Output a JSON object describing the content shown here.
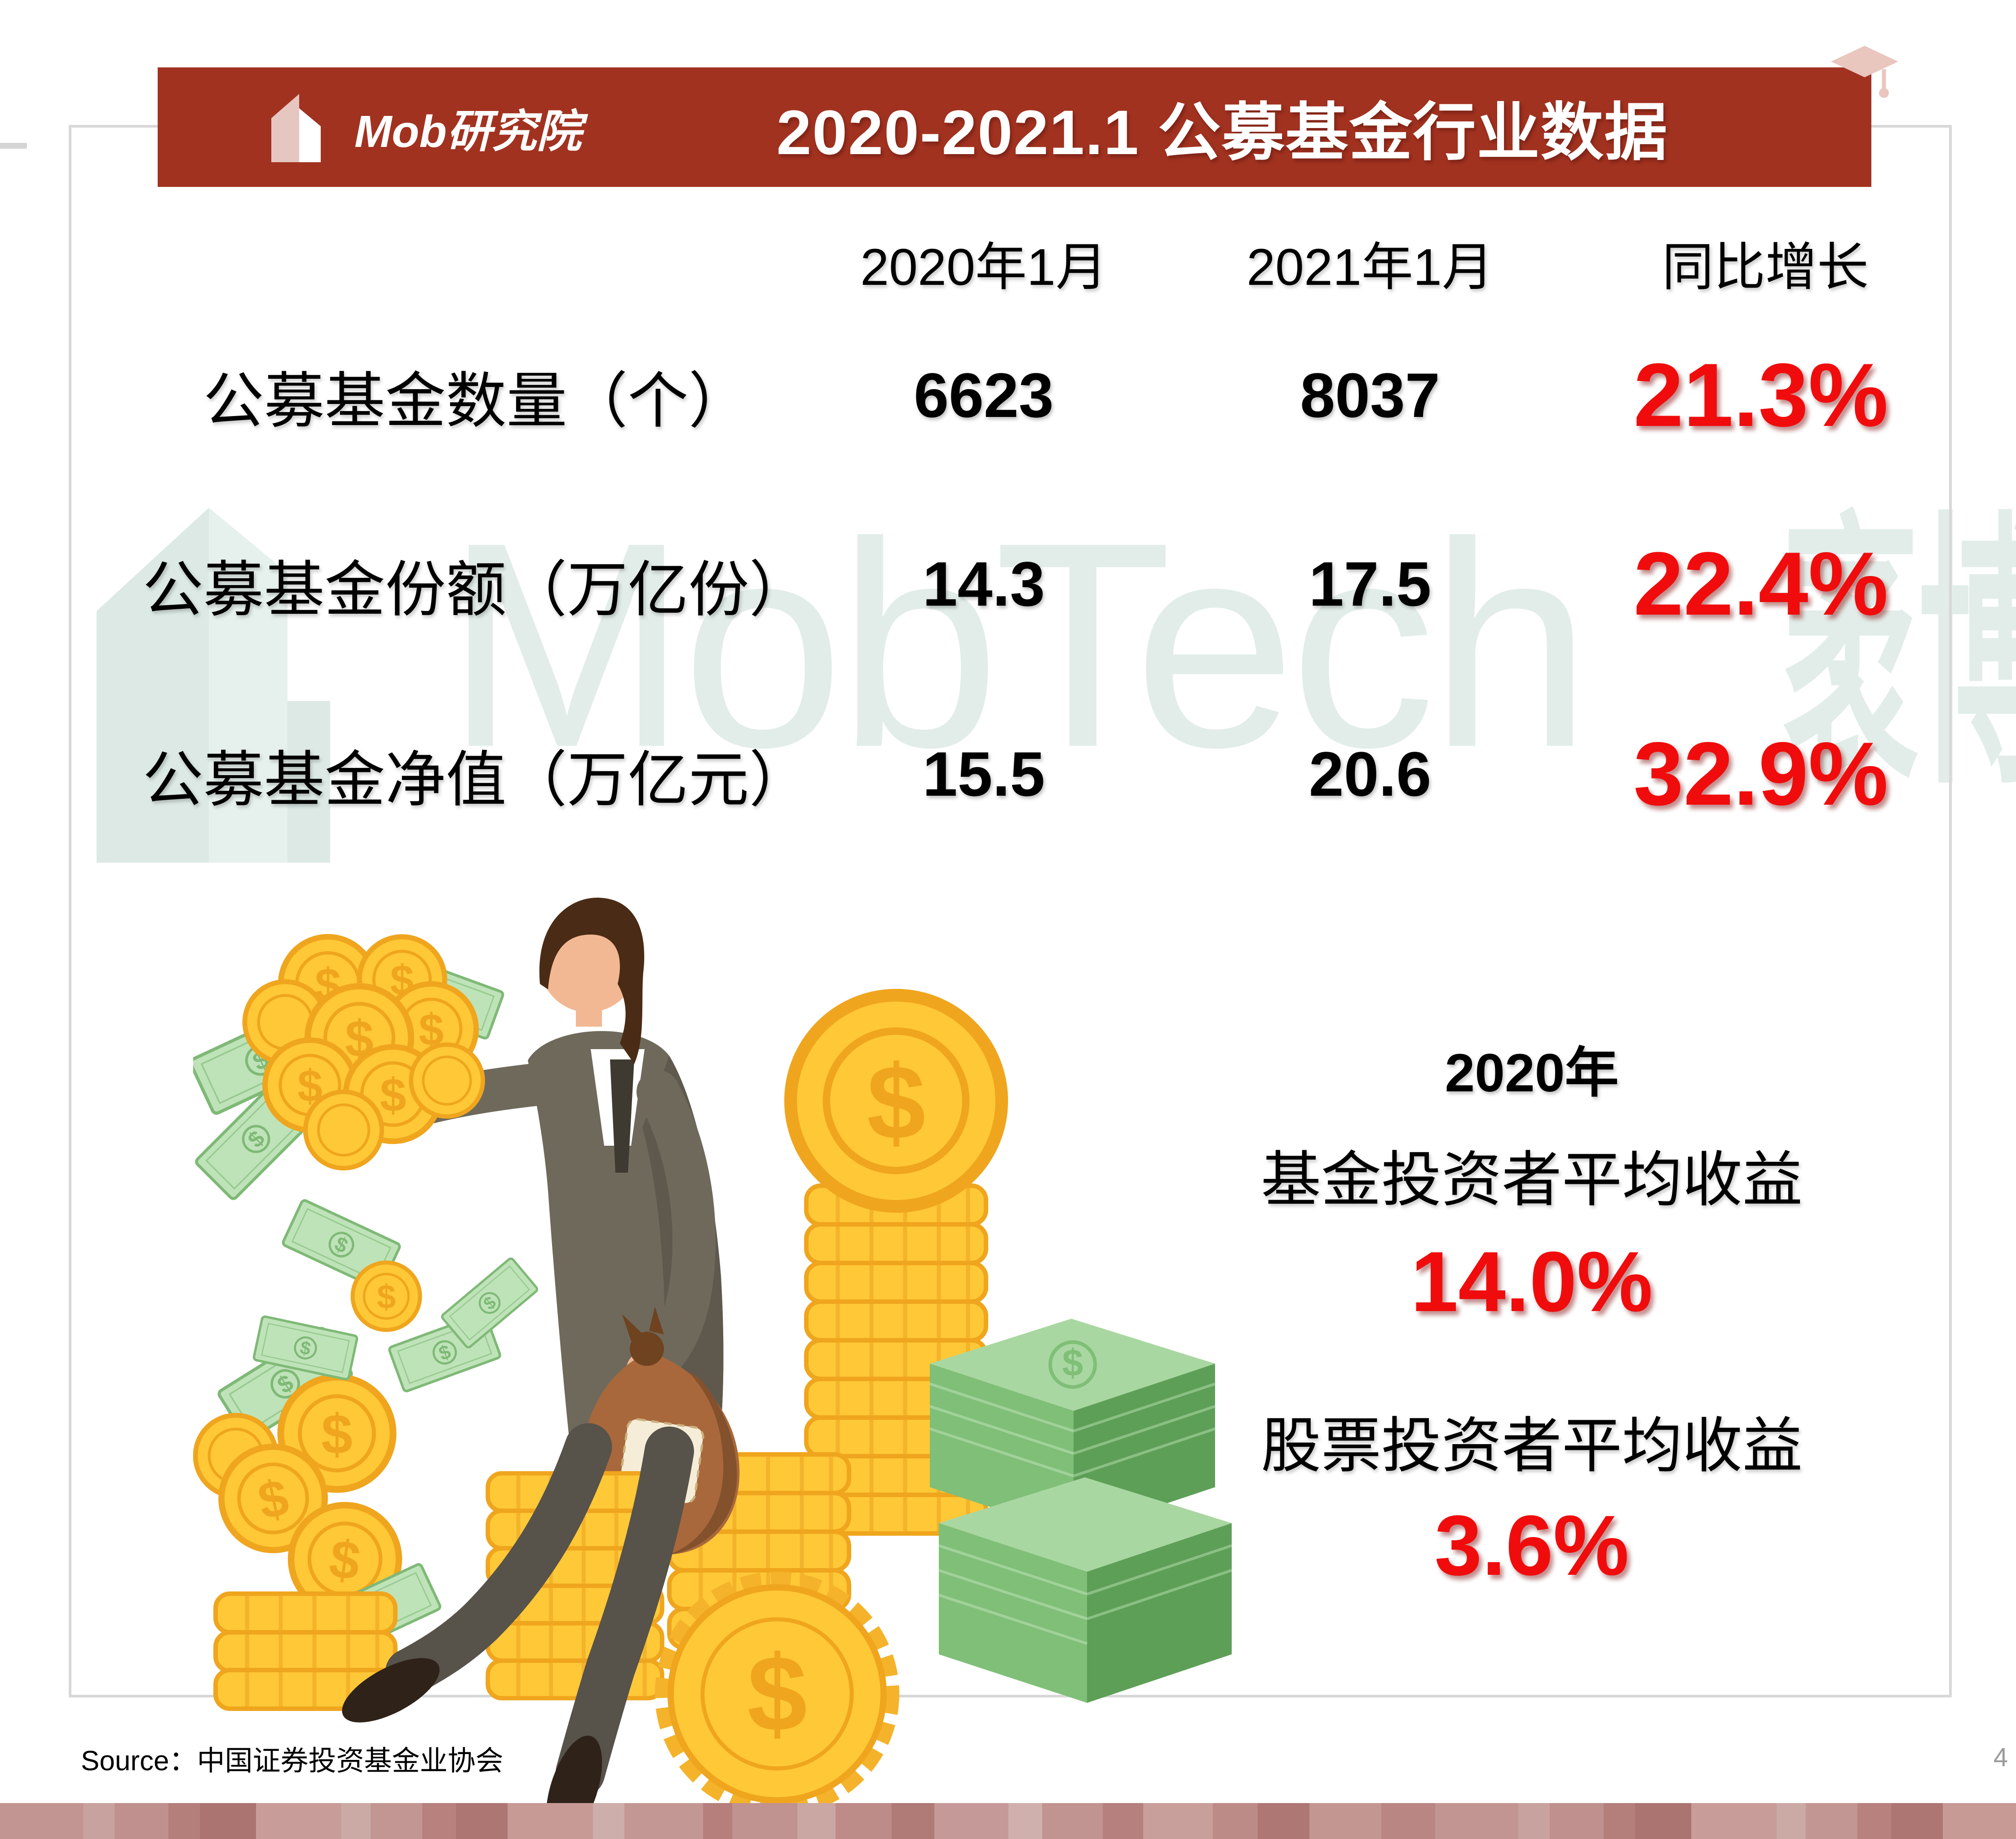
{
  "colors": {
    "header_red": "#A23220",
    "accent_red": "#F00C0C",
    "watermark_teal": "#E2EDE9",
    "frame_gray": "#D8D8D8",
    "page_number_gray": "#9B9B9B"
  },
  "header": {
    "logo_text": "Mob研究院",
    "title": "2020-2021.1 公募基金行业数据"
  },
  "table": {
    "columns": [
      "2020年1月",
      "2021年1月",
      "同比增长"
    ],
    "rows": [
      {
        "label": "公募基金数量（个）",
        "v2020": "6623",
        "v2021": "8037",
        "growth": "21.3%"
      },
      {
        "label": "公募基金份额（万亿份）",
        "v2020": "14.3",
        "v2021": "17.5",
        "growth": "22.4%"
      },
      {
        "label": "公募基金净值（万亿元）",
        "v2020": "15.5",
        "v2021": "20.6",
        "growth": "32.9%"
      }
    ]
  },
  "highlight": {
    "year": "2020年",
    "fund_label": "基金投资者平均收益",
    "fund_value": "14.0%",
    "stock_label": "股票投资者平均收益",
    "stock_value": "3.6%"
  },
  "watermark": {
    "latin": "MobTech",
    "cjk": "袤博"
  },
  "source": {
    "text": "Source：中国证券投资基金业协会"
  },
  "page": {
    "number": "4"
  },
  "illustration": {
    "currency_symbol": "$",
    "palette": {
      "gold": "#FFC837",
      "goldDark": "#EFA51D",
      "goldMid": "#F4B32A",
      "noteG": "#BFE3B8",
      "noteGD": "#7FB977",
      "bundleTop": "#A9D7A1",
      "bundleFront": "#7FBF78",
      "bundleSide": "#5E9F58",
      "suit": "#6F695C",
      "suitD": "#5F594D",
      "trous": "#57524A",
      "shoe": "#2E2219",
      "skin": "#F1B893",
      "hair": "#4A2B15",
      "bag": "#A8683B",
      "bagD": "#83512B",
      "cream": "#F6EDD8"
    }
  },
  "footer": {
    "bands": [
      {
        "w": 185,
        "c": "#C39592"
      },
      {
        "w": 70,
        "c": "#C8A29E"
      },
      {
        "w": 120,
        "c": "#BF908D"
      },
      {
        "w": 70,
        "c": "#B47F7B"
      },
      {
        "w": 125,
        "c": "#AB7470"
      },
      {
        "w": 190,
        "c": "#C89D99"
      },
      {
        "w": 65,
        "c": "#CBAAA6"
      },
      {
        "w": 115,
        "c": "#C29693"
      },
      {
        "w": 75,
        "c": "#B8817D"
      },
      {
        "w": 115,
        "c": "#AD7672"
      },
      {
        "w": 190,
        "c": "#C79A96"
      },
      {
        "w": 70,
        "c": "#CDAEAA"
      },
      {
        "w": 175,
        "c": "#C39894"
      },
      {
        "w": 65,
        "c": "#B67F7B"
      },
      {
        "w": 145,
        "c": "#C09290"
      },
      {
        "w": 85,
        "c": "#CAA7A3"
      },
      {
        "w": 125,
        "c": "#BD8B88"
      },
      {
        "w": 95,
        "c": "#B07A76"
      },
      {
        "w": 165,
        "c": "#C59997"
      },
      {
        "w": 75,
        "c": "#CFB0AC"
      },
      {
        "w": 135,
        "c": "#C19491"
      },
      {
        "w": 90,
        "c": "#B5807D"
      },
      {
        "w": 155,
        "c": "#C89F9B"
      },
      {
        "w": 100,
        "c": "#BC8A87"
      },
      {
        "w": 115,
        "c": "#AE7773"
      },
      {
        "w": 160,
        "c": "#C49692"
      },
      {
        "w": 120,
        "c": "#B98683"
      },
      {
        "w": 185,
        "c": "#C39592"
      },
      {
        "w": 70,
        "c": "#C8A29E"
      },
      {
        "w": 120,
        "c": "#BF908D"
      },
      {
        "w": 70,
        "c": "#B47F7B"
      },
      {
        "w": 125,
        "c": "#AB7470"
      },
      {
        "w": 190,
        "c": "#C89D99"
      },
      {
        "w": 65,
        "c": "#CBAAA6"
      },
      {
        "w": 115,
        "c": "#C29693"
      },
      {
        "w": 75,
        "c": "#B8817D"
      },
      {
        "w": 115,
        "c": "#AD7672"
      },
      {
        "w": 190,
        "c": "#C79A96"
      },
      {
        "w": 143,
        "c": "#C39894"
      }
    ]
  }
}
